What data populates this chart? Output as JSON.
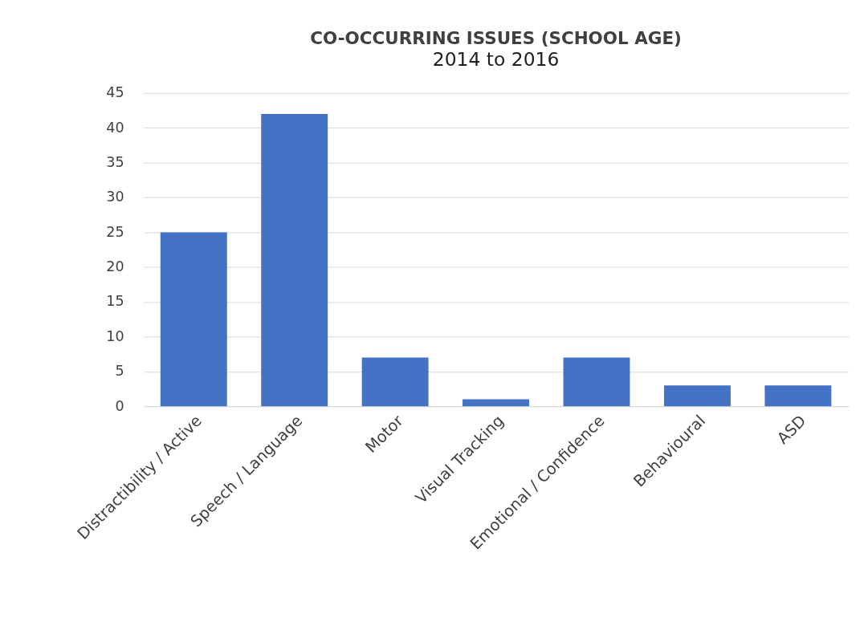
{
  "chart_data": {
    "type": "bar",
    "title": "CO-OCCURRING ISSUES (SCHOOL AGE)",
    "subtitle": "2014 to 2016",
    "categories": [
      "Distractibility / Active",
      "Speech / Language",
      "Motor",
      "Visual Tracking",
      "Emotional / Confidence",
      "Behavioural",
      "ASD"
    ],
    "values": [
      25,
      42,
      7,
      1,
      7,
      3,
      3
    ],
    "color": "#4472c4",
    "ylim": [
      0,
      45
    ],
    "yticks": [
      0,
      5,
      10,
      15,
      20,
      25,
      30,
      35,
      40,
      45
    ],
    "grid": "y"
  }
}
